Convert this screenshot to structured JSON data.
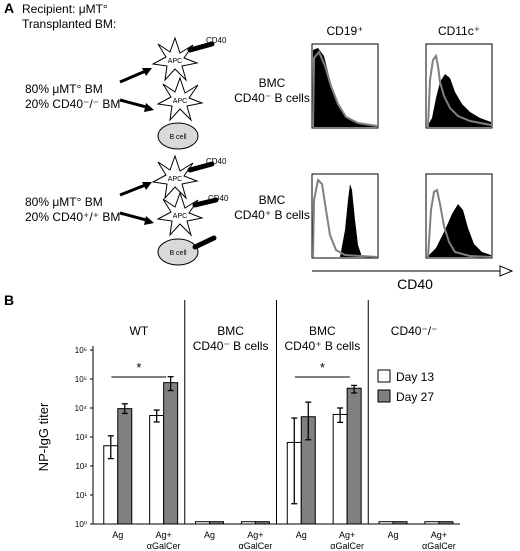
{
  "panel_a": {
    "letter": "A",
    "recipient_label": "Recipient: μMT°",
    "transplant_label": "Transplanted BM:",
    "apc_label": "APC",
    "cd40_label": "CD40",
    "bcell_label": "B cell",
    "groups": [
      {
        "mix_line1": "80% μMT° BM",
        "mix_line2": "20% CD40⁻/⁻ BM",
        "bmc_line1": "BMC",
        "bmc_line2": "CD40⁻ B cells"
      },
      {
        "mix_line1": "80% μMT° BM",
        "mix_line2": "20% CD40⁺/⁺ BM",
        "bmc_line1": "BMC",
        "bmc_line2": "CD40⁺ B cells"
      }
    ],
    "hist_headers": [
      "CD19⁺",
      "CD11c⁺"
    ],
    "axis_label": "CD40"
  },
  "chart_data": {
    "type": "bar",
    "title": "",
    "panel_letter": "B",
    "ylabel": "NP-IgG titer",
    "y_scale": "log",
    "y_ticks": [
      "10⁰",
      "10¹",
      "10²",
      "10³",
      "10⁴",
      "10⁵",
      "10⁶"
    ],
    "ylim": [
      1,
      1000000
    ],
    "groups": [
      {
        "title": "WT",
        "subtitle": "",
        "categories": [
          "Ag",
          "Ag+ αGalCer"
        ]
      },
      {
        "title": "BMC",
        "subtitle": "CD40⁻ B cells",
        "categories": [
          "Ag",
          "Ag+ αGalCer"
        ]
      },
      {
        "title": "BMC",
        "subtitle": "CD40⁺ B cells",
        "categories": [
          "Ag",
          "Ag+ αGalCer"
        ]
      },
      {
        "title": "CD40⁻/⁻",
        "subtitle": "",
        "categories": [
          "Ag",
          "Ag+ αGalCer"
        ]
      }
    ],
    "series": [
      {
        "name": "Day 13",
        "color": "#ffffff",
        "values": [
          500,
          5500,
          1.2,
          1.2,
          650,
          6000,
          1.2,
          1.2
        ],
        "err_low": [
          180,
          3300,
          null,
          null,
          5,
          3200,
          null,
          null
        ],
        "err_high": [
          1100,
          8500,
          null,
          null,
          4500,
          10000,
          null,
          null
        ]
      },
      {
        "name": "Day 27",
        "color": "#808080",
        "values": [
          9500,
          75000,
          1.2,
          1.2,
          5000,
          48000,
          1.2,
          1.2
        ],
        "err_low": [
          6500,
          40000,
          null,
          null,
          800,
          33000,
          null,
          null
        ],
        "err_high": [
          14000,
          120000,
          null,
          null,
          16000,
          60000,
          null,
          null
        ]
      }
    ],
    "significance": [
      {
        "group": 0,
        "label": "*"
      },
      {
        "group": 2,
        "label": "*"
      }
    ],
    "legend_position": "right"
  }
}
